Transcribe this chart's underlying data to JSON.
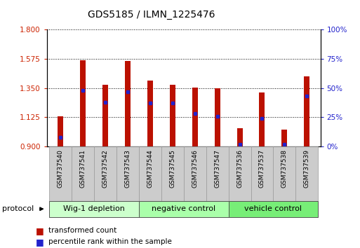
{
  "title": "GDS5185 / ILMN_1225476",
  "samples": [
    "GSM737540",
    "GSM737541",
    "GSM737542",
    "GSM737543",
    "GSM737544",
    "GSM737545",
    "GSM737546",
    "GSM737547",
    "GSM737536",
    "GSM737537",
    "GSM737538",
    "GSM737539"
  ],
  "bar_bottom": 0.9,
  "transformed_counts": [
    1.13,
    1.565,
    1.375,
    1.56,
    1.41,
    1.375,
    1.355,
    1.35,
    1.04,
    1.315,
    1.03,
    1.44
  ],
  "percentile_ranks": [
    8,
    48,
    38,
    47,
    37,
    37,
    28,
    26,
    2,
    24,
    2,
    43
  ],
  "ylim_left": [
    0.9,
    1.8
  ],
  "ylim_right": [
    0,
    100
  ],
  "yticks_left": [
    0.9,
    1.125,
    1.35,
    1.575,
    1.8
  ],
  "yticks_right": [
    0,
    25,
    50,
    75,
    100
  ],
  "groups": [
    {
      "label": "Wig-1 depletion",
      "start": 0,
      "end": 4,
      "color": "#ccffcc"
    },
    {
      "label": "negative control",
      "start": 4,
      "end": 8,
      "color": "#aaffaa"
    },
    {
      "label": "vehicle control",
      "start": 8,
      "end": 12,
      "color": "#77ee77"
    }
  ],
  "bar_color": "#bb1100",
  "dot_color": "#2222cc",
  "bar_width": 0.25,
  "left_axis_color": "#cc2200",
  "right_axis_color": "#2222cc",
  "sample_box_color": "#cccccc",
  "sample_box_edge": "#999999",
  "background_color": "#ffffff"
}
